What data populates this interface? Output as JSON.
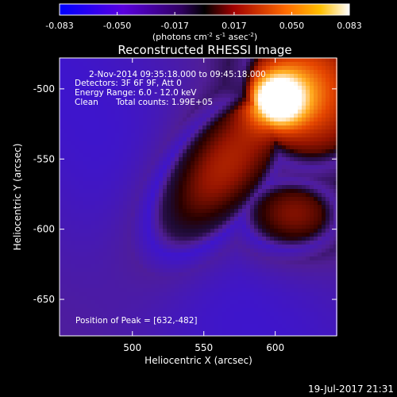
{
  "chart_data": {
    "type": "heatmap",
    "title": "Reconstructed RHESSI Image",
    "xlabel": "Heliocentric X (arcsec)",
    "ylabel": "Heliocentric Y (arcsec)",
    "xlim": [
      449,
      643
    ],
    "ylim": [
      -676,
      -478
    ],
    "x_ticks": [
      500,
      550,
      600
    ],
    "y_ticks": [
      -500,
      -550,
      -600,
      -650
    ],
    "grid": false,
    "colorbar": {
      "ticks": [
        "-0.083",
        "-0.050",
        "-0.017",
        "0.017",
        "0.050",
        "0.083"
      ],
      "range": [
        -0.083,
        0.083
      ],
      "unit_label": {
        "base1": "(photons cm",
        "sup1": "-2",
        "base2": " s",
        "sup2": "-1",
        "base3": " asec",
        "sup3": "-2",
        "base4": ")"
      },
      "colors": [
        "#0000ff",
        "#6a00d8",
        "#000000",
        "#b81000",
        "#ff7a00",
        "#ffffff"
      ]
    },
    "annotations": {
      "time_range": "2-Nov-2014 09:35:18.000 to 09:45:18.000",
      "detectors": "Detectors: 3F 6F 9F, Att 0",
      "energy": "Energy Range: 6.0 - 12.0 keV",
      "clean": "Clean",
      "counts": "Total counts: 1.99E+05",
      "peak": "Position of Peak = [632,-482]"
    },
    "peak_position": [
      632,
      -482
    ],
    "source_peak": {
      "x": 600,
      "y": -508
    }
  },
  "footer": {
    "timestamp": "19-Jul-2017 21:31"
  }
}
